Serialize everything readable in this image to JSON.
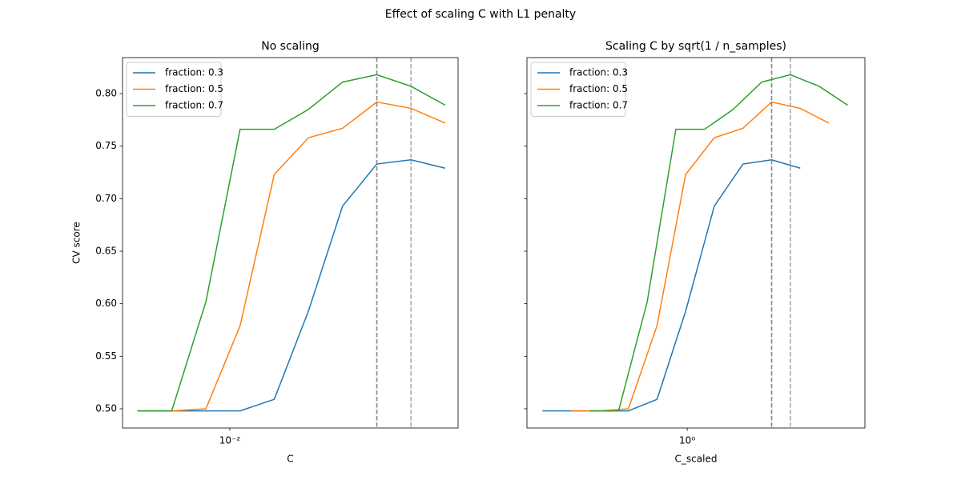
{
  "title": "Effect of scaling C with L1 penalty",
  "chart_data": [
    {
      "type": "line",
      "title": "No scaling",
      "xlabel": "C",
      "ylabel": "CV score",
      "xscale": "log",
      "legend": "upper left",
      "ytick_labels": true,
      "xlim": [
        0.00448,
        0.0552
      ],
      "ylim": [
        0.4817,
        0.8343
      ],
      "xticks": [
        {
          "value": 0.01,
          "label": "10⁻²"
        }
      ],
      "yticks": [
        {
          "value": 0.5,
          "label": "0.50"
        },
        {
          "value": 0.55,
          "label": "0.55"
        },
        {
          "value": 0.6,
          "label": "0.60"
        },
        {
          "value": 0.65,
          "label": "0.65"
        },
        {
          "value": 0.7,
          "label": "0.70"
        },
        {
          "value": 0.75,
          "label": "0.75"
        },
        {
          "value": 0.8,
          "label": "0.80"
        }
      ],
      "vlines": [
        0.03881,
        0.03005,
        0.03005
      ],
      "vline_color": "#7f7f7f",
      "series": [
        {
          "name": "fraction: 0.3",
          "color": "#1f77b4",
          "x": [
            0.005012,
            0.006474,
            0.008363,
            0.010797,
            0.013947,
            0.018011,
            0.023263,
            0.030049,
            0.038812,
            0.050119
          ],
          "values": [
            0.498,
            0.498,
            0.498,
            0.498,
            0.509,
            0.593,
            0.693,
            0.733,
            0.737,
            0.729
          ]
        },
        {
          "name": "fraction: 0.5",
          "color": "#ff7f0e",
          "x": [
            0.005012,
            0.006474,
            0.008363,
            0.010797,
            0.013947,
            0.018011,
            0.023263,
            0.030049,
            0.038812,
            0.050119
          ],
          "values": [
            0.498,
            0.498,
            0.5,
            0.579,
            0.723,
            0.758,
            0.767,
            0.792,
            0.786,
            0.772
          ]
        },
        {
          "name": "fraction: 0.7",
          "color": "#2ca02c",
          "x": [
            0.005012,
            0.006474,
            0.008363,
            0.010797,
            0.013947,
            0.018011,
            0.023263,
            0.030049,
            0.038812,
            0.050119
          ],
          "values": [
            0.498,
            0.498,
            0.602,
            0.766,
            0.766,
            0.785,
            0.811,
            0.818,
            0.807,
            0.789
          ]
        }
      ]
    },
    {
      "type": "line",
      "title": "Scaling C by sqrt(1 / n_samples)",
      "xlabel": "C_scaled",
      "xscale": "log",
      "legend": "upper left",
      "ytick_labels": false,
      "xlim": [
        0.239,
        4.89
      ],
      "ylim": [
        0.4817,
        0.8343
      ],
      "xticks": [
        {
          "value": 1,
          "label": "10⁰"
        }
      ],
      "yticks": [
        0.5,
        0.55,
        0.6,
        0.65,
        0.7,
        0.75,
        0.8
      ],
      "vlines": [
        2.126,
        2.125,
        2.514
      ],
      "vline_color": "#7f7f7f",
      "series": [
        {
          "name": "fraction: 0.3",
          "color": "#1f77b4",
          "x": [
            0.2745,
            0.3546,
            0.4581,
            0.5914,
            0.7639,
            0.9865,
            1.2742,
            1.6458,
            2.1258,
            2.7451
          ],
          "values": [
            0.498,
            0.498,
            0.498,
            0.498,
            0.509,
            0.593,
            0.693,
            0.733,
            0.737,
            0.729
          ]
        },
        {
          "name": "fraction: 0.5",
          "color": "#ff7f0e",
          "x": [
            0.3544,
            0.4578,
            0.5914,
            0.7635,
            0.9862,
            1.2736,
            1.645,
            2.1248,
            2.7444,
            3.544
          ],
          "values": [
            0.498,
            0.498,
            0.5,
            0.579,
            0.723,
            0.758,
            0.767,
            0.792,
            0.786,
            0.772
          ]
        },
        {
          "name": "fraction: 0.7",
          "color": "#2ca02c",
          "x": [
            0.4193,
            0.5417,
            0.6997,
            0.9034,
            1.1669,
            1.5069,
            1.9463,
            2.5141,
            3.2472,
            4.1933
          ],
          "values": [
            0.498,
            0.498,
            0.602,
            0.766,
            0.766,
            0.785,
            0.811,
            0.818,
            0.807,
            0.789
          ]
        }
      ]
    }
  ]
}
